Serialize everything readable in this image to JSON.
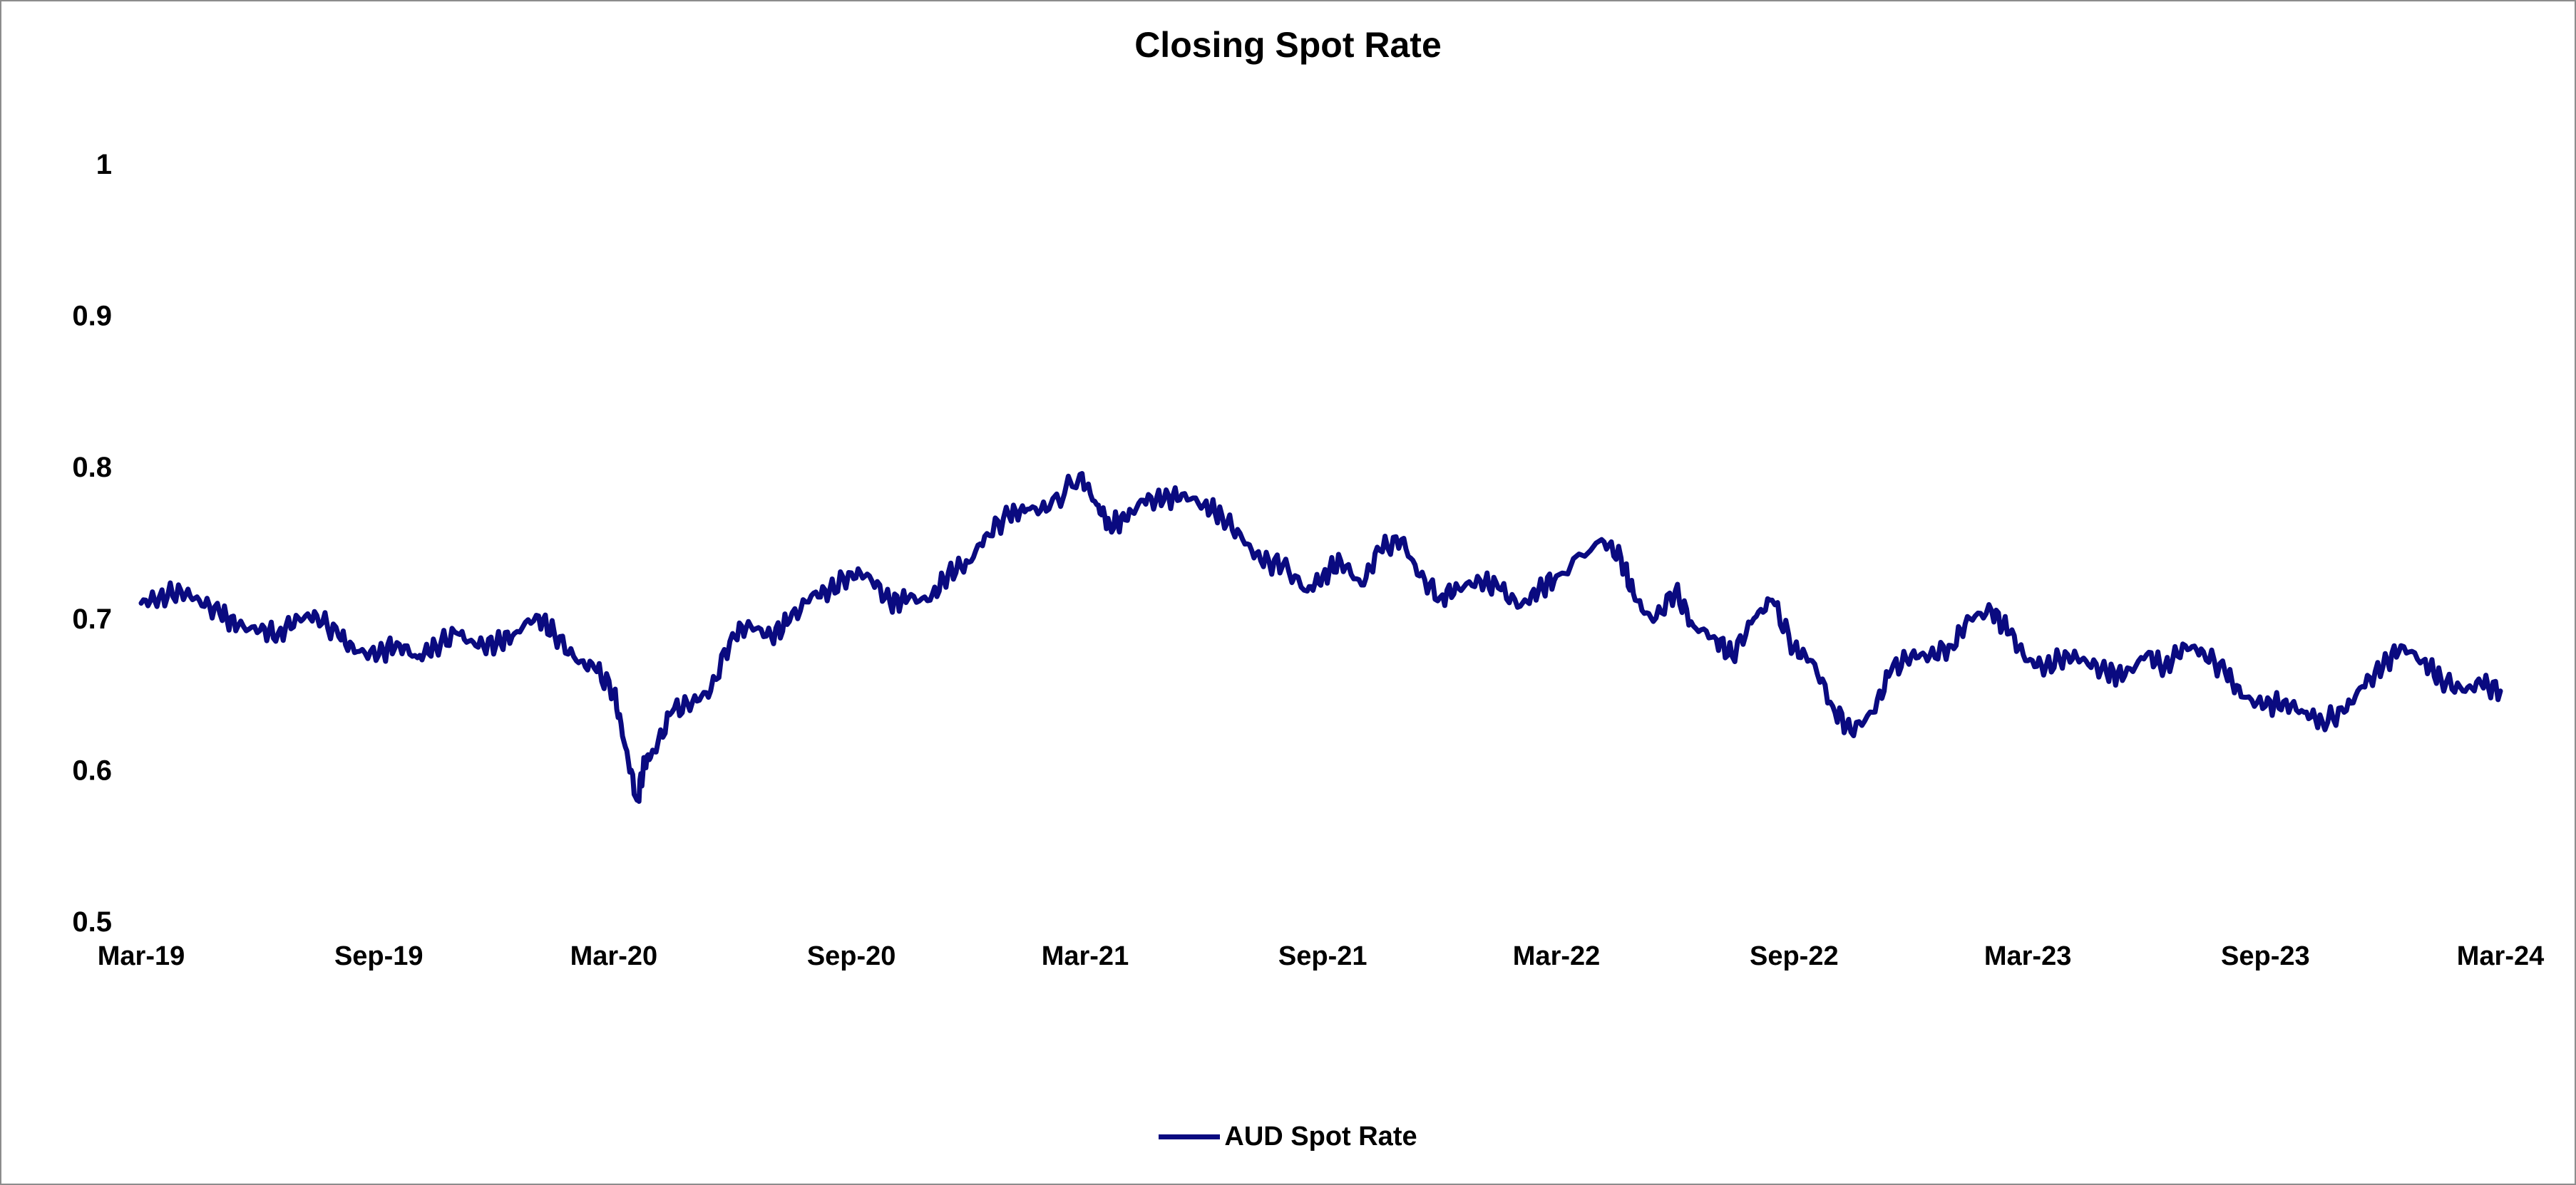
{
  "chart_data": {
    "type": "line",
    "title": "Closing Spot Rate",
    "xlabel": "",
    "ylabel": "",
    "ylim": [
      0.5,
      1
    ],
    "y_ticks": [
      0.5,
      0.6,
      0.7,
      0.8,
      0.9,
      1
    ],
    "y_tick_labels": [
      "0.5",
      "0.6",
      "0.7",
      "0.8",
      "0.9",
      "1"
    ],
    "x_range": [
      "2019-03-01",
      "2024-03-01"
    ],
    "x_tick_dates": [
      "2019-03-01",
      "2019-09-01",
      "2020-03-01",
      "2020-09-01",
      "2021-03-01",
      "2021-09-01",
      "2022-03-01",
      "2022-09-01",
      "2023-03-01",
      "2023-09-01",
      "2024-03-01"
    ],
    "x_tick_labels": [
      "Mar-19",
      "Sep-19",
      "Mar-20",
      "Sep-20",
      "Mar-21",
      "Sep-21",
      "Mar-22",
      "Sep-22",
      "Mar-23",
      "Sep-23",
      "Mar-24"
    ],
    "grid": false,
    "legend_position": "bottom",
    "series": [
      {
        "name": "AUD Spot Rate",
        "color": "#0a0a80",
        "x": [
          "2019-03-01",
          "2019-03-15",
          "2019-04-01",
          "2019-04-15",
          "2019-05-01",
          "2019-05-15",
          "2019-06-01",
          "2019-06-15",
          "2019-07-01",
          "2019-07-15",
          "2019-08-01",
          "2019-08-15",
          "2019-09-01",
          "2019-09-15",
          "2019-10-01",
          "2019-10-15",
          "2019-11-01",
          "2019-11-15",
          "2019-12-01",
          "2019-12-15",
          "2020-01-01",
          "2020-01-15",
          "2020-02-01",
          "2020-02-15",
          "2020-03-01",
          "2020-03-10",
          "2020-03-19",
          "2020-03-25",
          "2020-04-01",
          "2020-04-15",
          "2020-05-01",
          "2020-05-15",
          "2020-06-01",
          "2020-06-15",
          "2020-07-01",
          "2020-07-15",
          "2020-08-01",
          "2020-08-15",
          "2020-09-01",
          "2020-09-15",
          "2020-10-01",
          "2020-10-15",
          "2020-11-01",
          "2020-11-15",
          "2020-12-01",
          "2020-12-15",
          "2021-01-01",
          "2021-01-15",
          "2021-02-01",
          "2021-02-25",
          "2021-03-10",
          "2021-03-20",
          "2021-04-01",
          "2021-04-15",
          "2021-05-01",
          "2021-05-15",
          "2021-06-01",
          "2021-06-15",
          "2021-07-01",
          "2021-07-15",
          "2021-08-01",
          "2021-08-20",
          "2021-09-01",
          "2021-09-15",
          "2021-10-01",
          "2021-10-15",
          "2021-11-01",
          "2021-11-15",
          "2021-12-01",
          "2021-12-15",
          "2022-01-01",
          "2022-01-15",
          "2022-02-01",
          "2022-02-15",
          "2022-03-01",
          "2022-04-05",
          "2022-04-20",
          "2022-05-01",
          "2022-05-15",
          "2022-06-01",
          "2022-06-15",
          "2022-07-01",
          "2022-07-15",
          "2022-08-01",
          "2022-08-15",
          "2022-09-01",
          "2022-09-15",
          "2022-10-01",
          "2022-10-15",
          "2022-11-01",
          "2022-11-15",
          "2022-12-01",
          "2022-12-15",
          "2023-01-01",
          "2023-01-15",
          "2023-02-01",
          "2023-02-15",
          "2023-03-01",
          "2023-03-15",
          "2023-04-01",
          "2023-04-15",
          "2023-05-01",
          "2023-05-15",
          "2023-06-01",
          "2023-06-15",
          "2023-07-01",
          "2023-07-15",
          "2023-08-01",
          "2023-08-15",
          "2023-09-01",
          "2023-09-15",
          "2023-10-01",
          "2023-10-15",
          "2023-11-01",
          "2023-11-15",
          "2023-12-01",
          "2023-12-15",
          "2024-01-01",
          "2024-01-15",
          "2024-02-01",
          "2024-02-15",
          "2024-03-01"
        ],
        "y": [
          0.71,
          0.714,
          0.718,
          0.712,
          0.703,
          0.695,
          0.692,
          0.69,
          0.7,
          0.702,
          0.688,
          0.678,
          0.676,
          0.684,
          0.674,
          0.682,
          0.69,
          0.682,
          0.683,
          0.69,
          0.702,
          0.69,
          0.672,
          0.667,
          0.652,
          0.615,
          0.58,
          0.605,
          0.612,
          0.638,
          0.645,
          0.652,
          0.69,
          0.695,
          0.688,
          0.698,
          0.715,
          0.718,
          0.73,
          0.728,
          0.71,
          0.713,
          0.712,
          0.73,
          0.737,
          0.756,
          0.768,
          0.772,
          0.772,
          0.795,
          0.775,
          0.762,
          0.765,
          0.778,
          0.778,
          0.782,
          0.775,
          0.768,
          0.752,
          0.738,
          0.735,
          0.718,
          0.728,
          0.738,
          0.722,
          0.745,
          0.752,
          0.728,
          0.714,
          0.72,
          0.725,
          0.72,
          0.708,
          0.718,
          0.728,
          0.752,
          0.74,
          0.712,
          0.698,
          0.718,
          0.695,
          0.688,
          0.675,
          0.7,
          0.712,
          0.68,
          0.672,
          0.642,
          0.625,
          0.638,
          0.665,
          0.676,
          0.675,
          0.682,
          0.7,
          0.705,
          0.69,
          0.672,
          0.668,
          0.676,
          0.672,
          0.664,
          0.662,
          0.676,
          0.668,
          0.682,
          0.678,
          0.664,
          0.648,
          0.642,
          0.645,
          0.638,
          0.632,
          0.638,
          0.655,
          0.668,
          0.682,
          0.672,
          0.66,
          0.652,
          0.657,
          0.652
        ]
      }
    ]
  }
}
